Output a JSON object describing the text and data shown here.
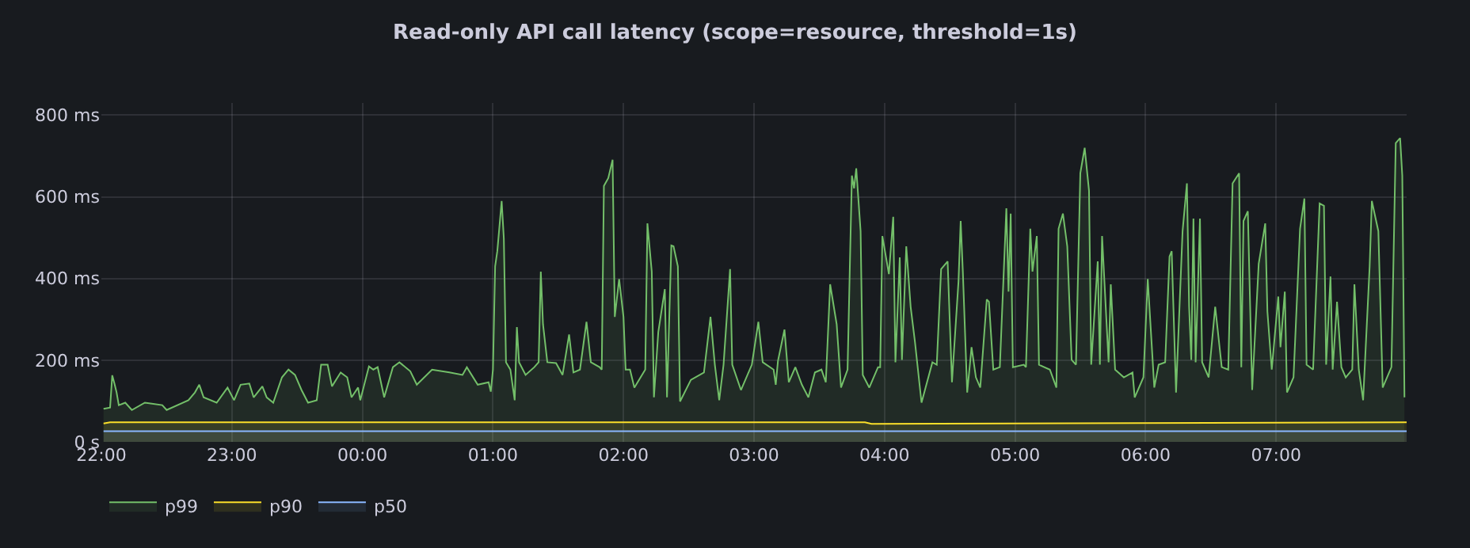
{
  "chart_data": {
    "type": "area",
    "title": "Read-only API call latency (scope=resource, threshold=1s)",
    "xlim": [
      "2000-01-01T22:00",
      "2000-01-02T08:00"
    ],
    "ylim": [
      0,
      830
    ],
    "xticks": [
      {
        "value": "2000-01-01T22:00",
        "label": "22:00"
      },
      {
        "value": "2000-01-01T23:00",
        "label": "23:00"
      },
      {
        "value": "2000-01-02T00:00",
        "label": "00:00"
      },
      {
        "value": "2000-01-02T01:00",
        "label": "01:00"
      },
      {
        "value": "2000-01-02T02:00",
        "label": "02:00"
      },
      {
        "value": "2000-01-02T03:00",
        "label": "03:00"
      },
      {
        "value": "2000-01-02T04:00",
        "label": "04:00"
      },
      {
        "value": "2000-01-02T05:00",
        "label": "05:00"
      },
      {
        "value": "2000-01-02T06:00",
        "label": "06:00"
      },
      {
        "value": "2000-01-02T07:00",
        "label": "07:00"
      }
    ],
    "yticks": [
      {
        "value": 0,
        "label": "0 s"
      },
      {
        "value": 200,
        "label": "200 ms"
      },
      {
        "value": 400,
        "label": "400 ms"
      },
      {
        "value": 600,
        "label": "600 ms"
      },
      {
        "value": 800,
        "label": "800 ms"
      }
    ],
    "grid": true,
    "legend": "bottom left",
    "series": [
      {
        "name": "p99",
        "color": "#73bf69",
        "x": [
          "2000-01-01T22:01",
          "2000-01-01T22:04",
          "2000-01-01T22:05",
          "2000-01-01T22:06",
          "2000-01-01T22:07",
          "2000-01-01T22:08",
          "2000-01-01T22:11",
          "2000-01-01T22:14",
          "2000-01-01T22:20",
          "2000-01-01T22:28",
          "2000-01-01T22:30",
          "2000-01-01T22:40",
          "2000-01-01T22:43",
          "2000-01-01T22:45",
          "2000-01-01T22:47",
          "2000-01-01T22:53",
          "2000-01-01T22:58",
          "2000-01-01T23:01",
          "2000-01-01T23:04",
          "2000-01-01T23:08",
          "2000-01-01T23:10",
          "2000-01-01T23:14",
          "2000-01-01T23:16",
          "2000-01-01T23:19",
          "2000-01-01T23:23",
          "2000-01-01T23:26",
          "2000-01-01T23:29",
          "2000-01-01T23:32",
          "2000-01-01T23:35",
          "2000-01-01T23:39",
          "2000-01-01T23:41",
          "2000-01-01T23:44",
          "2000-01-01T23:46",
          "2000-01-01T23:50",
          "2000-01-01T23:53",
          "2000-01-01T23:55",
          "2000-01-01T23:58",
          "2000-01-01T23:59",
          "2000-01-02T00:03",
          "2000-01-02T00:05",
          "2000-01-02T00:07",
          "2000-01-02T00:10",
          "2000-01-02T00:14",
          "2000-01-02T00:17",
          "2000-01-02T00:22",
          "2000-01-02T00:25",
          "2000-01-02T00:32",
          "2000-01-02T00:40",
          "2000-01-02T00:46",
          "2000-01-02T00:48",
          "2000-01-02T00:53",
          "2000-01-02T00:58",
          "2000-01-02T00:59",
          "2000-01-02T01:00",
          "2000-01-02T01:01",
          "2000-01-02T01:02",
          "2000-01-02T01:04",
          "2000-01-02T01:05",
          "2000-01-02T01:06",
          "2000-01-02T01:08",
          "2000-01-02T01:10",
          "2000-01-02T01:11",
          "2000-01-02T01:12",
          "2000-01-02T01:15",
          "2000-01-02T01:19",
          "2000-01-02T01:21",
          "2000-01-02T01:22",
          "2000-01-02T01:23",
          "2000-01-02T01:25",
          "2000-01-02T01:29",
          "2000-01-02T01:32",
          "2000-01-02T01:35",
          "2000-01-02T01:37",
          "2000-01-02T01:40",
          "2000-01-02T01:43",
          "2000-01-02T01:45",
          "2000-01-02T01:49",
          "2000-01-02T01:50",
          "2000-01-02T01:51",
          "2000-01-02T01:53",
          "2000-01-02T01:55",
          "2000-01-02T01:56",
          "2000-01-02T01:58",
          "2000-01-02T02:00",
          "2000-01-02T02:01",
          "2000-01-02T02:03",
          "2000-01-02T02:05",
          "2000-01-02T02:10",
          "2000-01-02T02:11",
          "2000-01-02T02:13",
          "2000-01-02T02:14",
          "2000-01-02T02:16",
          "2000-01-02T02:19",
          "2000-01-02T02:20",
          "2000-01-02T02:22",
          "2000-01-02T02:23",
          "2000-01-02T02:25",
          "2000-01-02T02:26",
          "2000-01-02T02:31",
          "2000-01-02T02:37",
          "2000-01-02T02:40",
          "2000-01-02T02:42",
          "2000-01-02T02:44",
          "2000-01-02T02:46",
          "2000-01-02T02:49",
          "2000-01-02T02:50",
          "2000-01-02T02:54",
          "2000-01-02T02:59",
          "2000-01-02T03:02",
          "2000-01-02T03:04",
          "2000-01-02T03:09",
          "2000-01-02T03:10",
          "2000-01-02T03:11",
          "2000-01-02T03:14",
          "2000-01-02T03:16",
          "2000-01-02T03:19",
          "2000-01-02T03:22",
          "2000-01-02T03:25",
          "2000-01-02T03:28",
          "2000-01-02T03:31",
          "2000-01-02T03:33",
          "2000-01-02T03:35",
          "2000-01-02T03:38",
          "2000-01-02T03:40",
          "2000-01-02T03:43",
          "2000-01-02T03:44",
          "2000-01-02T03:45",
          "2000-01-02T03:46",
          "2000-01-02T03:47",
          "2000-01-02T03:49",
          "2000-01-02T03:50",
          "2000-01-02T03:53",
          "2000-01-02T03:57",
          "2000-01-02T03:58",
          "2000-01-02T03:59",
          "2000-01-02T04:02",
          "2000-01-02T04:04",
          "2000-01-02T04:05",
          "2000-01-02T04:07",
          "2000-01-02T04:08",
          "2000-01-02T04:10",
          "2000-01-02T04:12",
          "2000-01-02T04:14",
          "2000-01-02T04:17",
          "2000-01-02T04:22",
          "2000-01-02T04:24",
          "2000-01-02T04:26",
          "2000-01-02T04:29",
          "2000-01-02T04:31",
          "2000-01-02T04:34",
          "2000-01-02T04:35",
          "2000-01-02T04:36",
          "2000-01-02T04:38",
          "2000-01-02T04:40",
          "2000-01-02T04:42",
          "2000-01-02T04:44",
          "2000-01-02T04:47",
          "2000-01-02T04:48",
          "2000-01-02T04:50",
          "2000-01-02T04:53",
          "2000-01-02T04:56",
          "2000-01-02T04:57",
          "2000-01-02T04:58",
          "2000-01-02T04:59",
          "2000-01-02T05:04",
          "2000-01-02T05:05",
          "2000-01-02T05:07",
          "2000-01-02T05:08",
          "2000-01-02T05:10",
          "2000-01-02T05:11",
          "2000-01-02T05:16",
          "2000-01-02T05:19",
          "2000-01-02T05:20",
          "2000-01-02T05:22",
          "2000-01-02T05:24",
          "2000-01-02T05:26",
          "2000-01-02T05:28",
          "2000-01-02T05:30",
          "2000-01-02T05:32",
          "2000-01-02T05:34",
          "2000-01-02T05:35",
          "2000-01-02T05:38",
          "2000-01-02T05:39",
          "2000-01-02T05:40",
          "2000-01-02T05:43",
          "2000-01-02T05:44",
          "2000-01-02T05:46",
          "2000-01-02T05:50",
          "2000-01-02T05:54",
          "2000-01-02T05:55",
          "2000-01-02T05:59",
          "2000-01-02T06:01",
          "2000-01-02T06:04",
          "2000-01-02T06:06",
          "2000-01-02T06:09",
          "2000-01-02T06:11",
          "2000-01-02T06:12",
          "2000-01-02T06:14",
          "2000-01-02T06:17",
          "2000-01-02T06:19",
          "2000-01-02T06:20",
          "2000-01-02T06:21",
          "2000-01-02T06:22",
          "2000-01-02T06:23",
          "2000-01-02T06:25",
          "2000-01-02T06:26",
          "2000-01-02T06:29",
          "2000-01-02T06:32",
          "2000-01-02T06:35",
          "2000-01-02T06:38",
          "2000-01-02T06:40",
          "2000-01-02T06:43",
          "2000-01-02T06:44",
          "2000-01-02T06:45",
          "2000-01-02T06:47",
          "2000-01-02T06:49",
          "2000-01-02T06:52",
          "2000-01-02T06:55",
          "2000-01-02T06:56",
          "2000-01-02T06:58",
          "2000-01-02T07:01",
          "2000-01-02T07:02",
          "2000-01-02T07:04",
          "2000-01-02T07:05",
          "2000-01-02T07:08",
          "2000-01-02T07:11",
          "2000-01-02T07:13",
          "2000-01-02T07:14",
          "2000-01-02T07:17",
          "2000-01-02T07:20",
          "2000-01-02T07:22",
          "2000-01-02T07:23",
          "2000-01-02T07:25",
          "2000-01-02T07:26",
          "2000-01-02T07:28",
          "2000-01-02T07:30",
          "2000-01-02T07:32",
          "2000-01-02T07:35",
          "2000-01-02T07:36",
          "2000-01-02T07:38",
          "2000-01-02T07:40",
          "2000-01-02T07:43",
          "2000-01-02T07:44",
          "2000-01-02T07:47",
          "2000-01-02T07:49",
          "2000-01-02T07:53",
          "2000-01-02T07:55",
          "2000-01-02T07:57",
          "2000-01-02T07:58",
          "2000-01-02T07:59"
        ],
        "values": [
          81,
          84,
          163,
          143,
          121,
          90,
          96,
          78,
          96,
          90,
          78,
          102,
          121,
          140,
          109,
          96,
          133,
          102,
          140,
          143,
          109,
          136,
          109,
          96,
          158,
          177,
          164,
          127,
          96,
          102,
          189,
          189,
          136,
          170,
          158,
          109,
          133,
          102,
          185,
          177,
          183,
          109,
          183,
          195,
          173,
          140,
          177,
          170,
          164,
          183,
          140,
          146,
          123,
          177,
          430,
          467,
          590,
          498,
          195,
          177,
          102,
          281,
          195,
          164,
          183,
          195,
          417,
          288,
          195,
          193,
          164,
          263,
          170,
          177,
          294,
          195,
          183,
          177,
          627,
          646,
          691,
          306,
          399,
          306,
          177,
          177,
          133,
          177,
          535,
          417,
          109,
          269,
          374,
          109,
          481,
          479,
          430,
          99,
          152,
          170,
          306,
          189,
          102,
          189,
          423,
          189,
          127,
          189,
          294,
          195,
          177,
          140,
          198,
          275,
          146,
          183,
          140,
          109,
          170,
          177,
          146,
          386,
          288,
          133,
          177,
          417,
          652,
          621,
          670,
          516,
          164,
          133,
          183,
          183,
          504,
          411,
          551,
          195,
          452,
          201,
          479,
          331,
          244,
          96,
          195,
          189,
          423,
          442,
          146,
          393,
          541,
          417,
          121,
          232,
          158,
          133,
          349,
          343,
          177,
          183,
          572,
          368,
          559,
          183,
          189,
          183,
          522,
          417,
          504,
          189,
          177,
          133,
          522,
          559,
          479,
          201,
          189,
          658,
          720,
          615,
          189,
          442,
          189,
          504,
          195,
          386,
          177,
          158,
          170,
          109,
          158,
          399,
          133,
          189,
          195,
          454,
          467,
          121,
          516,
          633,
          331,
          201,
          547,
          195,
          547,
          195,
          158,
          331,
          183,
          177,
          633,
          658,
          183,
          541,
          565,
          127,
          436,
          535,
          319,
          177,
          356,
          232,
          368,
          121,
          158,
          522,
          596,
          189,
          177,
          584,
          578,
          189,
          405,
          177,
          343,
          183,
          158,
          177,
          386,
          177,
          102,
          430,
          590,
          516,
          133,
          183,
          732,
          744,
          652,
          109
        ]
      },
      {
        "name": "p90",
        "color": "#fade2a",
        "x": [
          "2000-01-01T22:01",
          "2000-01-01T22:04",
          "2000-01-02T03:51",
          "2000-01-02T03:54",
          "2000-01-02T08:00"
        ],
        "values": [
          45,
          48,
          48,
          44,
          48
        ]
      },
      {
        "name": "p50",
        "color": "#8ab8ff",
        "x": [
          "2000-01-01T22:01",
          "2000-01-02T08:00"
        ],
        "values": [
          26,
          26
        ]
      }
    ]
  }
}
